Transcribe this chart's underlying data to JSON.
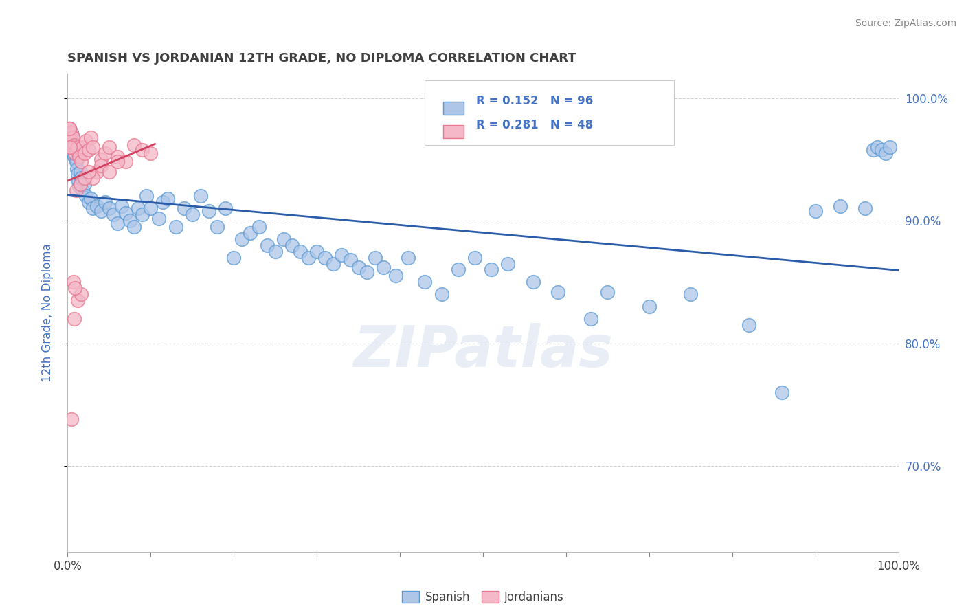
{
  "title": "SPANISH VS JORDANIAN 12TH GRADE, NO DIPLOMA CORRELATION CHART",
  "source_text": "Source: ZipAtlas.com",
  "ylabel": "12th Grade, No Diploma",
  "xlim": [
    0.0,
    1.0
  ],
  "ylim": [
    0.63,
    1.02
  ],
  "spanish_color": "#aec6e8",
  "spanish_edge_color": "#5b9bd5",
  "jordanian_color": "#f4b8c8",
  "jordanian_edge_color": "#e8768e",
  "spanish_line_color": "#2a5caa",
  "jordanian_line_color": "#d04060",
  "background_color": "#ffffff",
  "grid_color": "#c8c8c8",
  "title_color": "#404040",
  "axis_label_color": "#4472c4",
  "tick_color": "#404040",
  "R_spanish": 0.152,
  "N_spanish": 96,
  "R_jordanian": 0.281,
  "N_jordanian": 48,
  "watermark": "ZIPatlas",
  "spanish_x": [
    0.001,
    0.002,
    0.002,
    0.003,
    0.003,
    0.004,
    0.004,
    0.005,
    0.005,
    0.006,
    0.006,
    0.007,
    0.007,
    0.008,
    0.008,
    0.009,
    0.01,
    0.011,
    0.012,
    0.013,
    0.014,
    0.015,
    0.016,
    0.018,
    0.02,
    0.022,
    0.025,
    0.028,
    0.03,
    0.035,
    0.04,
    0.045,
    0.05,
    0.055,
    0.06,
    0.065,
    0.07,
    0.075,
    0.08,
    0.085,
    0.09,
    0.095,
    0.1,
    0.11,
    0.115,
    0.12,
    0.13,
    0.14,
    0.15,
    0.16,
    0.17,
    0.18,
    0.19,
    0.2,
    0.21,
    0.22,
    0.23,
    0.24,
    0.25,
    0.26,
    0.27,
    0.28,
    0.29,
    0.3,
    0.31,
    0.32,
    0.33,
    0.34,
    0.35,
    0.36,
    0.37,
    0.38,
    0.395,
    0.41,
    0.43,
    0.45,
    0.47,
    0.49,
    0.51,
    0.53,
    0.56,
    0.59,
    0.63,
    0.65,
    0.7,
    0.75,
    0.82,
    0.86,
    0.9,
    0.93,
    0.96,
    0.97,
    0.975,
    0.98,
    0.985,
    0.99
  ],
  "spanish_y": [
    0.97,
    0.972,
    0.975,
    0.968,
    0.96,
    0.965,
    0.958,
    0.972,
    0.962,
    0.968,
    0.955,
    0.962,
    0.958,
    0.952,
    0.96,
    0.955,
    0.948,
    0.942,
    0.938,
    0.932,
    0.928,
    0.94,
    0.935,
    0.925,
    0.93,
    0.92,
    0.915,
    0.918,
    0.91,
    0.912,
    0.908,
    0.915,
    0.91,
    0.905,
    0.898,
    0.912,
    0.906,
    0.9,
    0.895,
    0.91,
    0.905,
    0.92,
    0.91,
    0.902,
    0.915,
    0.918,
    0.895,
    0.91,
    0.905,
    0.92,
    0.908,
    0.895,
    0.91,
    0.87,
    0.885,
    0.89,
    0.895,
    0.88,
    0.875,
    0.885,
    0.88,
    0.875,
    0.87,
    0.875,
    0.87,
    0.865,
    0.872,
    0.868,
    0.862,
    0.858,
    0.87,
    0.862,
    0.855,
    0.87,
    0.85,
    0.84,
    0.86,
    0.87,
    0.86,
    0.865,
    0.85,
    0.842,
    0.82,
    0.842,
    0.83,
    0.84,
    0.815,
    0.76,
    0.908,
    0.912,
    0.91,
    0.958,
    0.96,
    0.958,
    0.955,
    0.96
  ],
  "jordanian_x": [
    0.001,
    0.002,
    0.002,
    0.003,
    0.003,
    0.004,
    0.004,
    0.005,
    0.005,
    0.006,
    0.007,
    0.008,
    0.009,
    0.01,
    0.012,
    0.014,
    0.016,
    0.018,
    0.02,
    0.022,
    0.025,
    0.028,
    0.03,
    0.035,
    0.04,
    0.045,
    0.05,
    0.06,
    0.07,
    0.08,
    0.09,
    0.1,
    0.03,
    0.04,
    0.05,
    0.06,
    0.01,
    0.015,
    0.02,
    0.025,
    0.008,
    0.012,
    0.016,
    0.005,
    0.007,
    0.009,
    0.003,
    0.002
  ],
  "jordanian_y": [
    0.968,
    0.972,
    0.975,
    0.97,
    0.965,
    0.968,
    0.96,
    0.972,
    0.965,
    0.968,
    0.96,
    0.962,
    0.955,
    0.958,
    0.96,
    0.952,
    0.948,
    0.96,
    0.955,
    0.965,
    0.958,
    0.968,
    0.96,
    0.94,
    0.95,
    0.955,
    0.96,
    0.952,
    0.948,
    0.962,
    0.958,
    0.955,
    0.935,
    0.945,
    0.94,
    0.948,
    0.925,
    0.93,
    0.935,
    0.94,
    0.82,
    0.835,
    0.84,
    0.738,
    0.85,
    0.845,
    0.96,
    0.975
  ]
}
